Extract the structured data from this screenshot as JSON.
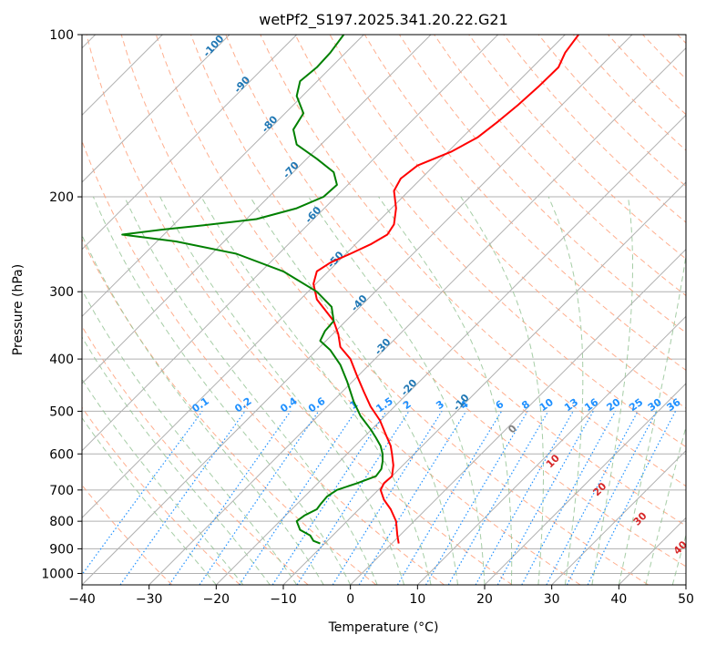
{
  "chart_data": {
    "type": "line",
    "title": "wetPf2_S197.2025.341.20.22.G21",
    "xlabel": "Temperature (°C)",
    "ylabel": "Pressure (hPa)",
    "xlim": [
      -40,
      50
    ],
    "ylim": [
      1050,
      100
    ],
    "y_scale": "log",
    "grid": true,
    "x_ticks": [
      "−40",
      "−30",
      "−20",
      "−10",
      "0",
      "10",
      "20",
      "30",
      "40",
      "50"
    ],
    "y_ticks": [
      "100",
      "200",
      "300",
      "400",
      "500",
      "600",
      "700",
      "800",
      "900",
      "1000"
    ],
    "series": [
      {
        "color": "#ff0000",
        "points": [
          [
            7.2,
            880
          ],
          [
            7.0,
            850
          ],
          [
            6.8,
            800
          ],
          [
            6.0,
            760
          ],
          [
            5.0,
            730
          ],
          [
            4.5,
            700
          ],
          [
            5.0,
            680
          ],
          [
            6.2,
            660
          ],
          [
            6.4,
            630
          ],
          [
            6.2,
            600
          ],
          [
            6.0,
            580
          ],
          [
            5.2,
            550
          ],
          [
            4.4,
            520
          ],
          [
            3.0,
            490
          ],
          [
            2.0,
            460
          ],
          [
            1.0,
            430
          ],
          [
            0.0,
            400
          ],
          [
            -1.5,
            380
          ],
          [
            -1.8,
            360
          ],
          [
            -2.5,
            340
          ],
          [
            -5.0,
            310
          ],
          [
            -5.5,
            290
          ],
          [
            -5.0,
            275
          ],
          [
            -3.0,
            265
          ],
          [
            0.0,
            255
          ],
          [
            3.0,
            245
          ],
          [
            5.5,
            235
          ],
          [
            6.5,
            225
          ],
          [
            6.8,
            210
          ],
          [
            6.5,
            195
          ],
          [
            7.5,
            185
          ],
          [
            10.0,
            175
          ],
          [
            15.0,
            165
          ],
          [
            19.0,
            155
          ],
          [
            22.0,
            145
          ],
          [
            25.0,
            135
          ],
          [
            28.0,
            125
          ],
          [
            31.0,
            115
          ],
          [
            32.0,
            108
          ],
          [
            34.0,
            100
          ]
        ]
      },
      {
        "color": "#008000",
        "points": [
          [
            -4.5,
            880
          ],
          [
            -5.5,
            870
          ],
          [
            -6.0,
            850
          ],
          [
            -7.5,
            830
          ],
          [
            -8.0,
            800
          ],
          [
            -6.8,
            780
          ],
          [
            -5.0,
            760
          ],
          [
            -4.5,
            745
          ],
          [
            -3.5,
            720
          ],
          [
            -2.0,
            700
          ],
          [
            1.0,
            680
          ],
          [
            3.8,
            660
          ],
          [
            4.6,
            640
          ],
          [
            4.8,
            620
          ],
          [
            4.8,
            600
          ],
          [
            4.5,
            580
          ],
          [
            3.8,
            560
          ],
          [
            3.0,
            540
          ],
          [
            1.5,
            510
          ],
          [
            0.5,
            480
          ],
          [
            -0.5,
            440
          ],
          [
            -1.5,
            410
          ],
          [
            -3.0,
            385
          ],
          [
            -4.5,
            370
          ],
          [
            -3.8,
            355
          ],
          [
            -2.5,
            340
          ],
          [
            -2.8,
            320
          ],
          [
            -5.0,
            300
          ],
          [
            -10.0,
            275
          ],
          [
            -17.0,
            255
          ],
          [
            -26.0,
            242
          ],
          [
            -34.0,
            235
          ],
          [
            -28.0,
            230
          ],
          [
            -22.0,
            226
          ],
          [
            -14.0,
            220
          ],
          [
            -8.0,
            210
          ],
          [
            -4.0,
            200
          ],
          [
            -2.0,
            190
          ],
          [
            -2.5,
            180
          ],
          [
            -5.0,
            170
          ],
          [
            -8.0,
            160
          ],
          [
            -8.5,
            150
          ],
          [
            -7.0,
            140
          ],
          [
            -8.0,
            130
          ],
          [
            -7.5,
            122
          ],
          [
            -5.0,
            115
          ],
          [
            -3.0,
            108
          ],
          [
            -1.0,
            100
          ]
        ]
      }
    ],
    "isotherm_labels": [
      "-100",
      "-90",
      "-80",
      "-70",
      "-60",
      "-50",
      "-40",
      "-30",
      "-20",
      "-10"
    ],
    "mixing_ratio_labels": [
      "0.1",
      "0.2",
      "0.4",
      "0.6",
      "1",
      "1.5",
      "2",
      "3",
      "4",
      "6",
      "8",
      "10",
      "13",
      "16",
      "20",
      "25",
      "30",
      "36"
    ],
    "moist_adiabat_labels": [
      "0",
      "10",
      "20",
      "30",
      "40"
    ],
    "colors": {
      "temperature": "#ff0000",
      "dewpoint": "#008000",
      "isotherm_label": "#1f77b4",
      "mixing_ratio": "#1e90ff",
      "moist_adiabat_label": "#d62728",
      "zero_label": "#808080",
      "dry_adiabat": "#ffa07a",
      "moist_adiabat": "#90c090",
      "grid": "#b0b0b0"
    }
  }
}
